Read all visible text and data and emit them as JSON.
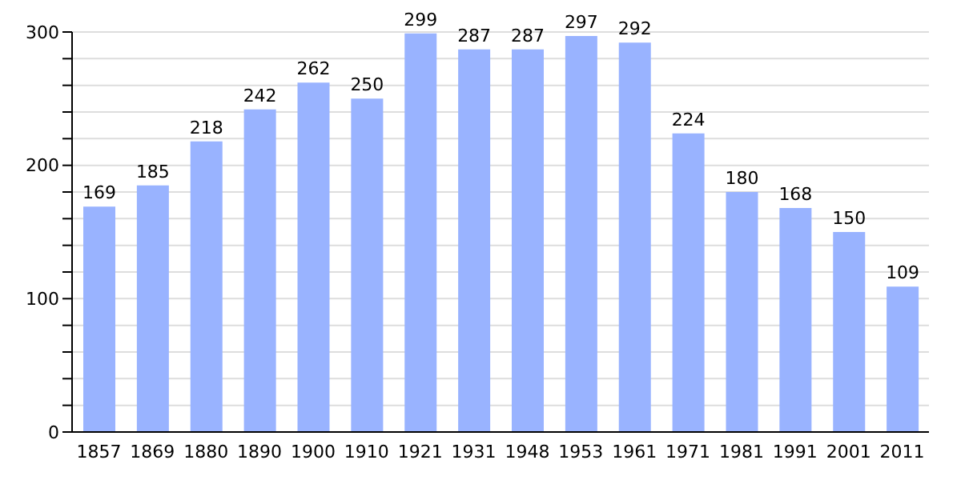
{
  "chart_data": {
    "type": "bar",
    "categories": [
      "1857",
      "1869",
      "1880",
      "1890",
      "1900",
      "1910",
      "1921",
      "1931",
      "1948",
      "1953",
      "1961",
      "1971",
      "1981",
      "1991",
      "2001",
      "2011"
    ],
    "values": [
      169,
      185,
      218,
      242,
      262,
      250,
      299,
      287,
      287,
      297,
      292,
      224,
      180,
      168,
      150,
      109
    ],
    "color": "#99b3ff",
    "ylim": [
      0,
      300
    ],
    "yticks": [
      0,
      {
        "value": 20,
        "label": null
      },
      {
        "value": 40,
        "label": null
      },
      {
        "value": 60,
        "label": null
      },
      {
        "value": 80,
        "label": null
      },
      100,
      {
        "value": 120,
        "label": null
      },
      {
        "value": 140,
        "label": null
      },
      {
        "value": 160,
        "label": null
      },
      {
        "value": 180,
        "label": null
      },
      200,
      {
        "value": 220,
        "label": null
      },
      {
        "value": 240,
        "label": null
      },
      {
        "value": 260,
        "label": null
      },
      {
        "value": 280,
        "label": null
      },
      300
    ],
    "grid": "y",
    "data_labels": true
  }
}
